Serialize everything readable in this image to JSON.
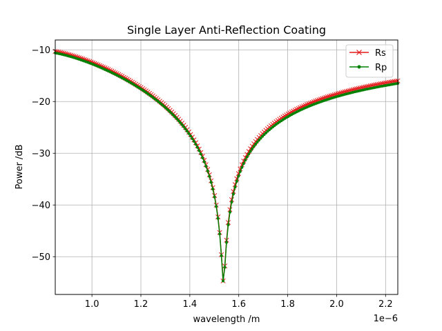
{
  "chart_data": {
    "type": "line",
    "title": "Single Layer Anti-Reflection Coating",
    "xlabel": "wavelength /m",
    "ylabel": "Power /dB",
    "x_offset_label": "1e−6",
    "xlim": [
      8.5e-07,
      2.25e-06
    ],
    "ylim": [
      -57.3,
      -8.1
    ],
    "xticks": [
      1e-06,
      1.2e-06,
      1.4e-06,
      1.6e-06,
      1.8e-06,
      2e-06,
      2.2e-06
    ],
    "xtick_labels": [
      "1.0",
      "1.2",
      "1.4",
      "1.6",
      "1.8",
      "2.0",
      "2.2"
    ],
    "yticks": [
      -10,
      -20,
      -30,
      -40,
      -50
    ],
    "ytick_labels": [
      "−10",
      "−20",
      "−30",
      "−40",
      "−50"
    ],
    "grid": true,
    "legend_position": "top-right",
    "x_range": {
      "start": 8.5e-07,
      "end": 2.25e-06,
      "count": 201
    },
    "series": [
      {
        "name": "Rs",
        "color": "#e41a1c",
        "marker": "x",
        "far_left": -10.3,
        "far_right": -16.0,
        "minimum": -55.0,
        "minimum_x": 1.5375e-06
      },
      {
        "name": "Rp",
        "color": "#008000",
        "marker": "dot",
        "far_left": -10.6,
        "far_right": -16.5,
        "minimum": -55.0,
        "minimum_x": 1.5375e-06
      }
    ]
  }
}
